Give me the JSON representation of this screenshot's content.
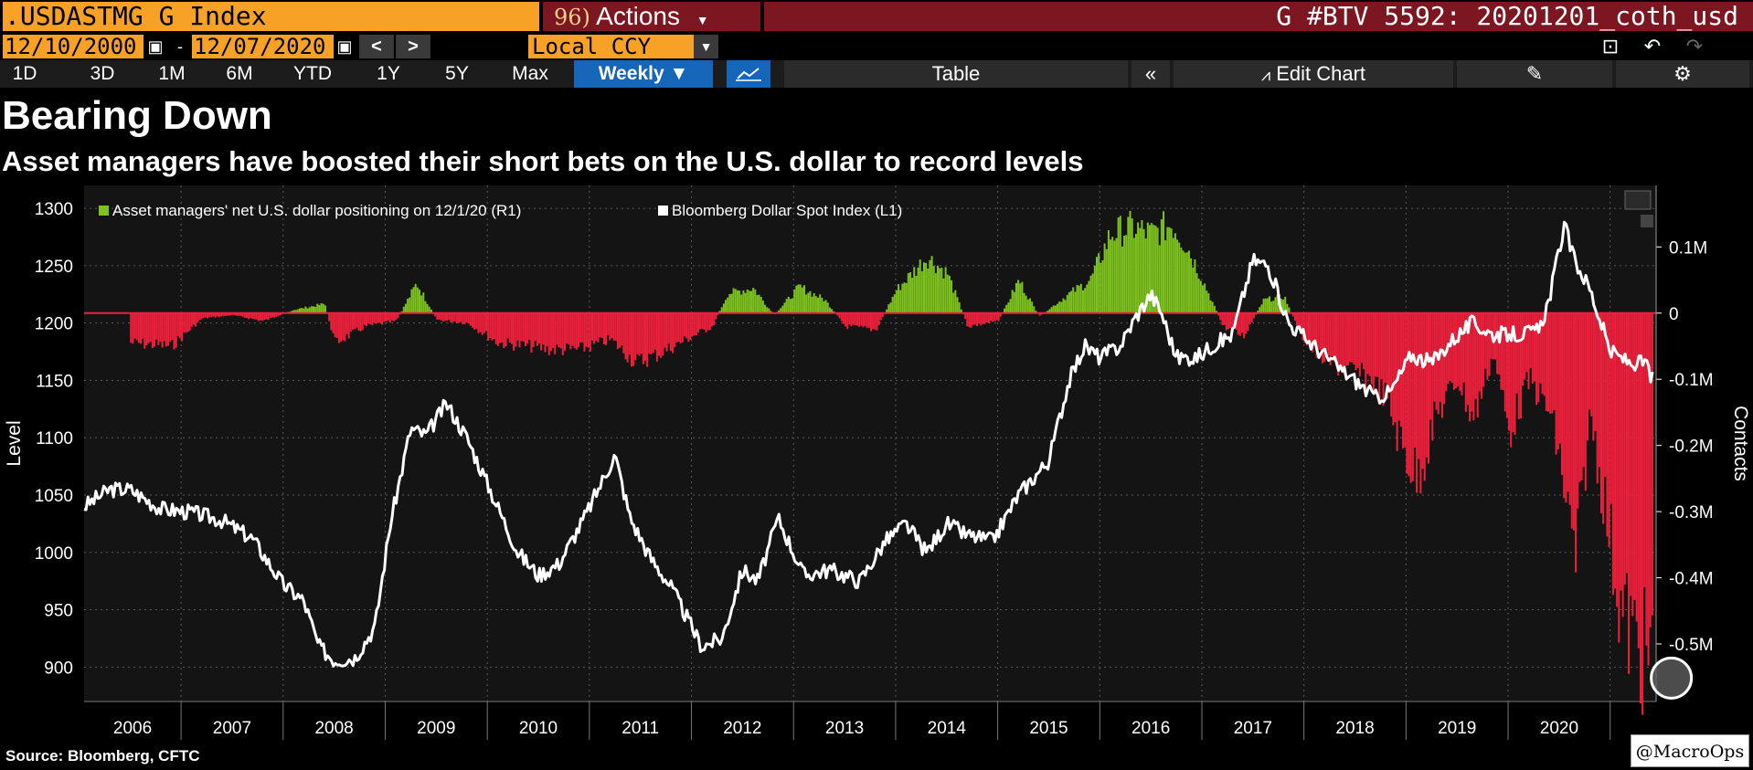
{
  "toolbar": {
    "ticker": ".USDASTMG G Index",
    "actions_num": "96)",
    "actions_label": "Actions",
    "graph_title": "G #BTV 5592: 20201201_coth_usd",
    "start_date": "12/10/2000",
    "date_sep": "-",
    "end_date": "12/07/2020",
    "prev": "<",
    "next": ">",
    "currency": "Local CCY",
    "timeframes": [
      "1D",
      "3D",
      "1M",
      "6M",
      "YTD",
      "1Y",
      "5Y",
      "Max"
    ],
    "frequency": "Weekly ▼",
    "table_label": "Table",
    "collapse": "«",
    "edit_chart": "Edit Chart"
  },
  "headline": "Bearing Down",
  "subheadline": "Asset managers have boosted their short bets on the U.S. dollar to record levels",
  "source": "Source: Bloomberg, CFTC",
  "credit": "@MacroOps",
  "colors": {
    "positive": "#7dc21e",
    "negative": "#f0203c",
    "line": "#ffffff",
    "panel": "#141414",
    "grid": "#5a5a5a"
  },
  "chart_data": {
    "type": "bar+line",
    "legend": [
      {
        "label": "Asset managers' net U.S. dollar positioning on 12/1/20 (R1)",
        "color": "#7dc21e"
      },
      {
        "label": "Bloomberg Dollar Spot Index (L1)",
        "color": "#ffffff"
      }
    ],
    "y_left": {
      "label": "Level",
      "ticks": [
        900,
        950,
        1000,
        1050,
        1100,
        1150,
        1200,
        1250,
        1300
      ],
      "range": [
        870,
        1320
      ]
    },
    "y_right": {
      "label": "Contacts",
      "ticks": [
        0.1,
        0,
        -0.1,
        -0.2,
        -0.3,
        -0.4,
        -0.5
      ],
      "tick_labels": [
        "0.1M",
        "0",
        "-0.1M",
        "-0.2M",
        "-0.3M",
        "-0.4M",
        "-0.5M"
      ],
      "range": [
        -0.587,
        0.193
      ]
    },
    "x_range": [
      2005.55,
      2020.95
    ],
    "x_labels": [
      "2006",
      "2007",
      "2008",
      "2009",
      "2010",
      "2011",
      "2012",
      "2013",
      "2014",
      "2015",
      "2016",
      "2017",
      "2018",
      "2019",
      "2020"
    ],
    "series": [
      {
        "name": "Asset managers' net U.S. dollar positioning (M contracts)",
        "axis": "right",
        "type": "bar",
        "points": [
          [
            2006.0,
            -0.045
          ],
          [
            2006.4,
            -0.05
          ],
          [
            2006.7,
            -0.008
          ],
          [
            2007.0,
            -0.003
          ],
          [
            2007.3,
            -0.012
          ],
          [
            2007.6,
            0.005
          ],
          [
            2007.9,
            0.014
          ],
          [
            2008.0,
            -0.045
          ],
          [
            2008.3,
            -0.02
          ],
          [
            2008.6,
            -0.012
          ],
          [
            2008.8,
            0.045
          ],
          [
            2009.0,
            -0.01
          ],
          [
            2009.3,
            -0.015
          ],
          [
            2009.6,
            -0.045
          ],
          [
            2009.9,
            -0.05
          ],
          [
            2010.1,
            -0.055
          ],
          [
            2010.4,
            -0.055
          ],
          [
            2010.7,
            -0.04
          ],
          [
            2010.95,
            -0.075
          ],
          [
            2011.2,
            -0.06
          ],
          [
            2011.5,
            -0.035
          ],
          [
            2011.7,
            -0.02
          ],
          [
            2011.85,
            0.03
          ],
          [
            2012.1,
            0.038
          ],
          [
            2012.3,
            -0.003
          ],
          [
            2012.55,
            0.04
          ],
          [
            2012.8,
            0.02
          ],
          [
            2013.0,
            -0.02
          ],
          [
            2013.3,
            -0.025
          ],
          [
            2013.5,
            0.035
          ],
          [
            2013.8,
            0.085
          ],
          [
            2014.0,
            0.06
          ],
          [
            2014.2,
            -0.02
          ],
          [
            2014.5,
            -0.012
          ],
          [
            2014.7,
            0.05
          ],
          [
            2014.9,
            -0.005
          ],
          [
            2015.2,
            0.03
          ],
          [
            2015.4,
            0.05
          ],
          [
            2015.6,
            0.12
          ],
          [
            2015.8,
            0.13
          ],
          [
            2016.0,
            0.12
          ],
          [
            2016.2,
            0.135
          ],
          [
            2016.35,
            0.1
          ],
          [
            2016.5,
            0.05
          ],
          [
            2016.7,
            -0.02
          ],
          [
            2016.9,
            -0.035
          ],
          [
            2017.1,
            0.02
          ],
          [
            2017.3,
            0.025
          ],
          [
            2017.45,
            -0.03
          ],
          [
            2017.6,
            -0.06
          ],
          [
            2017.8,
            -0.08
          ],
          [
            2018.0,
            -0.09
          ],
          [
            2018.15,
            -0.1
          ],
          [
            2018.3,
            -0.13
          ],
          [
            2018.45,
            -0.2
          ],
          [
            2018.6,
            -0.25
          ],
          [
            2018.8,
            -0.15
          ],
          [
            2019.0,
            -0.1
          ],
          [
            2019.15,
            -0.16
          ],
          [
            2019.35,
            -0.06
          ],
          [
            2019.5,
            -0.18
          ],
          [
            2019.7,
            -0.1
          ],
          [
            2019.9,
            -0.15
          ],
          [
            2020.0,
            -0.22
          ],
          [
            2020.15,
            -0.38
          ],
          [
            2020.3,
            -0.15
          ],
          [
            2020.45,
            -0.3
          ],
          [
            2020.6,
            -0.45
          ],
          [
            2020.75,
            -0.5
          ],
          [
            2020.92,
            -0.535
          ]
        ]
      },
      {
        "name": "Bloomberg Dollar Spot Index",
        "axis": "left",
        "type": "line",
        "points": [
          [
            2005.55,
            1040
          ],
          [
            2005.8,
            1055
          ],
          [
            2006.0,
            1055
          ],
          [
            2006.3,
            1038
          ],
          [
            2006.6,
            1035
          ],
          [
            2006.9,
            1028
          ],
          [
            2007.2,
            1012
          ],
          [
            2007.5,
            972
          ],
          [
            2007.7,
            958
          ],
          [
            2007.85,
            918
          ],
          [
            2008.0,
            906
          ],
          [
            2008.2,
            908
          ],
          [
            2008.4,
            935
          ],
          [
            2008.55,
            1025
          ],
          [
            2008.75,
            1108
          ],
          [
            2008.9,
            1102
          ],
          [
            2009.1,
            1130
          ],
          [
            2009.3,
            1100
          ],
          [
            2009.5,
            1060
          ],
          [
            2009.8,
            1000
          ],
          [
            2010.0,
            980
          ],
          [
            2010.2,
            990
          ],
          [
            2010.45,
            1030
          ],
          [
            2010.75,
            1085
          ],
          [
            2010.9,
            1030
          ],
          [
            2011.1,
            995
          ],
          [
            2011.3,
            970
          ],
          [
            2011.6,
            918
          ],
          [
            2011.8,
            925
          ],
          [
            2012.0,
            985
          ],
          [
            2012.15,
            975
          ],
          [
            2012.35,
            1030
          ],
          [
            2012.6,
            980
          ],
          [
            2012.85,
            985
          ],
          [
            2013.15,
            975
          ],
          [
            2013.4,
            1010
          ],
          [
            2013.6,
            1025
          ],
          [
            2013.8,
            1000
          ],
          [
            2014.0,
            1025
          ],
          [
            2014.2,
            1015
          ],
          [
            2014.45,
            1010
          ],
          [
            2014.7,
            1050
          ],
          [
            2015.0,
            1080
          ],
          [
            2015.2,
            1150
          ],
          [
            2015.35,
            1180
          ],
          [
            2015.5,
            1170
          ],
          [
            2015.7,
            1180
          ],
          [
            2015.85,
            1205
          ],
          [
            2016.0,
            1225
          ],
          [
            2016.1,
            1210
          ],
          [
            2016.25,
            1170
          ],
          [
            2016.45,
            1170
          ],
          [
            2016.6,
            1180
          ],
          [
            2016.8,
            1190
          ],
          [
            2017.0,
            1255
          ],
          [
            2017.15,
            1250
          ],
          [
            2017.35,
            1200
          ],
          [
            2017.6,
            1180
          ],
          [
            2017.85,
            1160
          ],
          [
            2018.0,
            1150
          ],
          [
            2018.2,
            1135
          ],
          [
            2018.35,
            1140
          ],
          [
            2018.55,
            1172
          ],
          [
            2018.75,
            1165
          ],
          [
            2018.95,
            1185
          ],
          [
            2019.15,
            1200
          ],
          [
            2019.35,
            1190
          ],
          [
            2019.6,
            1190
          ],
          [
            2019.8,
            1193
          ],
          [
            2019.9,
            1220
          ],
          [
            2020.05,
            1285
          ],
          [
            2020.15,
            1255
          ],
          [
            2020.3,
            1230
          ],
          [
            2020.5,
            1175
          ],
          [
            2020.7,
            1165
          ],
          [
            2020.85,
            1165
          ],
          [
            2020.93,
            1148
          ]
        ]
      }
    ]
  }
}
